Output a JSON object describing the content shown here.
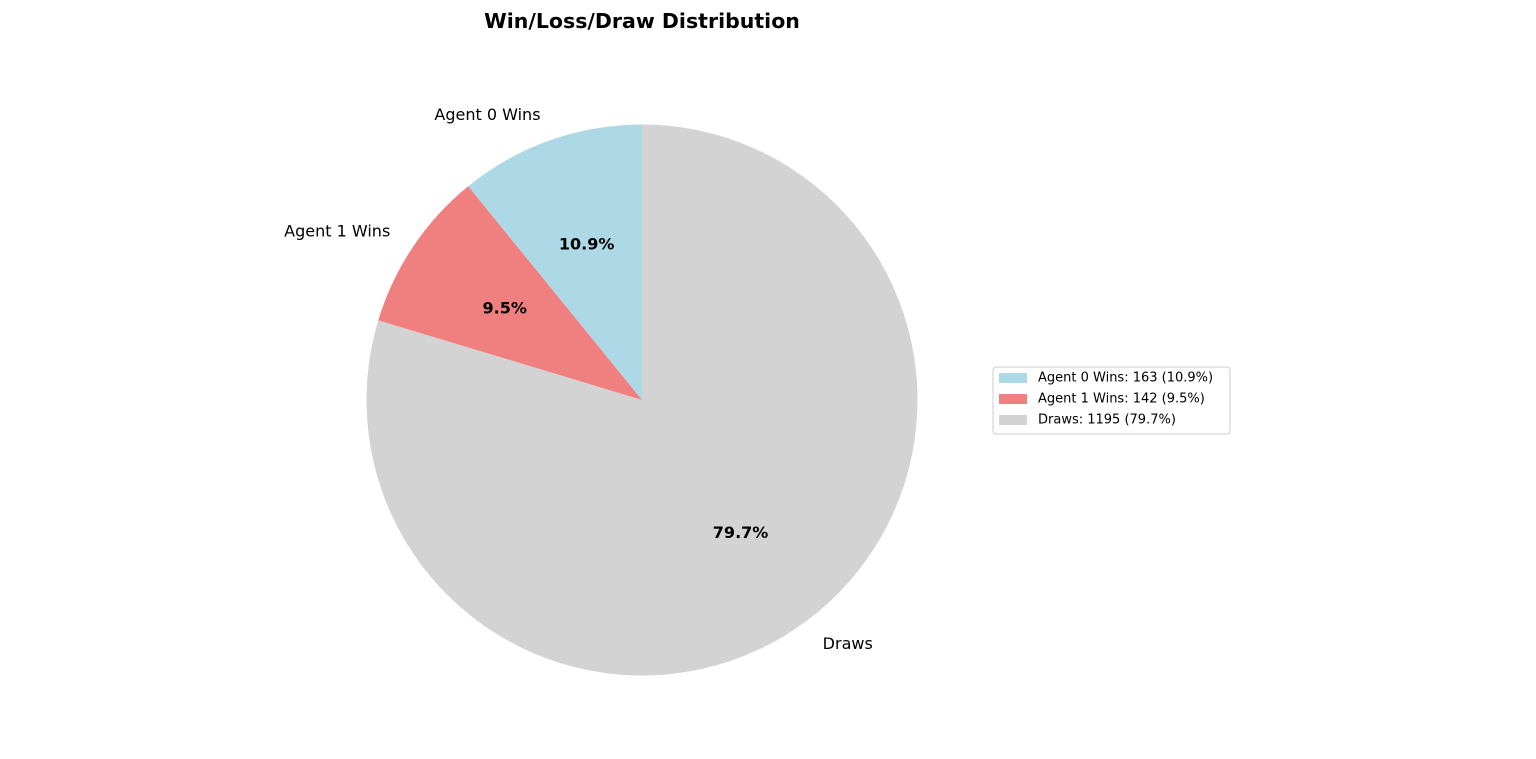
{
  "chart_data": {
    "type": "pie",
    "title": "Win/Loss/Draw Distribution",
    "start_angle_deg": 90,
    "direction": "counterclockwise",
    "legend_position": "right",
    "slices": [
      {
        "label": "Agent 0 Wins",
        "value": 163,
        "percent_label": "10.9%",
        "legend_label": "Agent 0 Wins: 163 (10.9%)",
        "color": "#add8e6"
      },
      {
        "label": "Agent 1 Wins",
        "value": 142,
        "percent_label": "9.5%",
        "legend_label": "Agent 1 Wins: 142 (9.5%)",
        "color": "#f08080"
      },
      {
        "label": "Draws",
        "value": 1195,
        "percent_label": "79.7%",
        "legend_label": "Draws: 1195 (79.7%)",
        "color": "#d3d3d3"
      }
    ]
  }
}
